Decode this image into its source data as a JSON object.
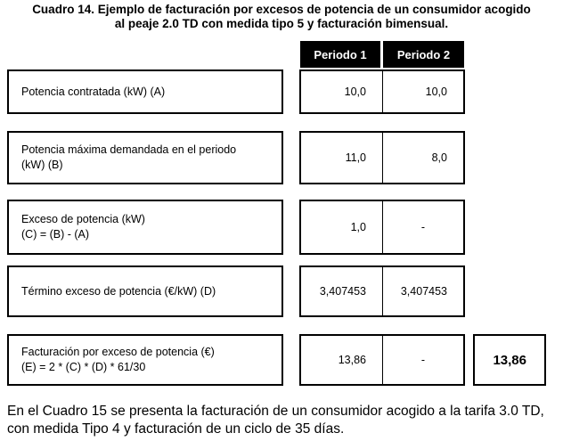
{
  "caption": {
    "line1": "Cuadro 14. Ejemplo de facturación por excesos de potencia de un consumidor acogido",
    "line2": "al peaje 2.0 TD con medida tipo 5 y facturación bimensual."
  },
  "columns": [
    "Periodo 1",
    "Periodo 2"
  ],
  "rows": [
    {
      "label_lines": [
        "Potencia contratada (kW) (A)"
      ],
      "p1": "10,0",
      "p2": "10,0"
    },
    {
      "label_lines": [
        "Potencia máxima demandada en el periodo",
        "(kW) (B)"
      ],
      "p1": "11,0",
      "p2": "8,0"
    },
    {
      "label_lines": [
        "Exceso de potencia (kW)",
        "(C) = (B) - (A)"
      ],
      "p1": "1,0",
      "p2": "-"
    },
    {
      "label_lines": [
        "Término exceso de potencia (€/kW) (D)"
      ],
      "p1": "3,407453",
      "p2": "3,407453"
    },
    {
      "label_lines": [
        "Facturación por exceso de potencia (€)",
        "(E) = 2 * (C) * (D) * 61/30"
      ],
      "p1": "13,86",
      "p2": "-"
    }
  ],
  "total": "13,86",
  "paragraph": "En el Cuadro 15 se presenta la facturación de un consumidor acogido a la tarifa 3.0 TD, con medida Tipo 4 y facturación de un ciclo de 35 días."
}
